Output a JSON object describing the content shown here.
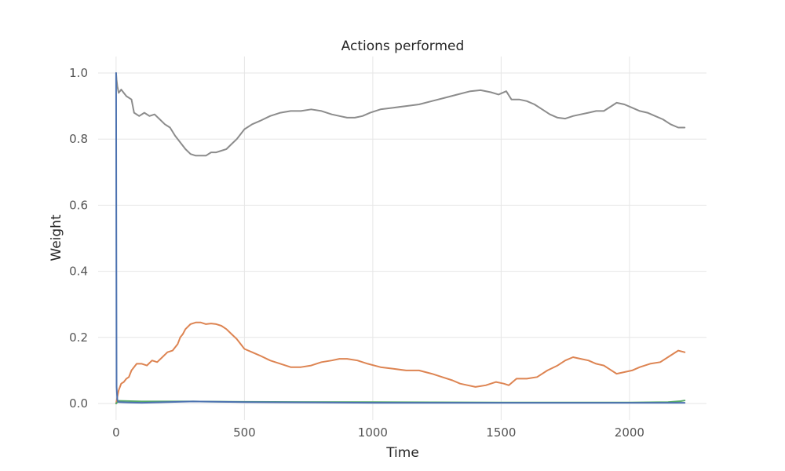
{
  "chart_data": {
    "type": "line",
    "title": "Actions performed",
    "xlabel": "Time",
    "ylabel": "Weight",
    "xlim": [
      -70,
      2300
    ],
    "ylim": [
      -0.05,
      1.05
    ],
    "xticks": [
      0,
      500,
      1000,
      1500,
      2000
    ],
    "yticks": [
      0.0,
      0.2,
      0.4,
      0.6,
      0.8,
      1.0
    ],
    "xtick_labels": [
      "0",
      "500",
      "1000",
      "1500",
      "2000"
    ],
    "ytick_labels": [
      "0.0",
      "0.2",
      "0.4",
      "0.6",
      "0.8",
      "1.0"
    ],
    "grid": true,
    "legend": "none",
    "series": [
      {
        "color": "#8c8c8c",
        "x": [
          0,
          2,
          5,
          10,
          20,
          40,
          60,
          70,
          90,
          110,
          130,
          150,
          170,
          190,
          210,
          230,
          250,
          270,
          290,
          310,
          330,
          350,
          370,
          390,
          410,
          430,
          450,
          470,
          500,
          530,
          560,
          600,
          640,
          680,
          720,
          760,
          800,
          840,
          870,
          900,
          930,
          960,
          990,
          1030,
          1080,
          1130,
          1180,
          1230,
          1280,
          1330,
          1380,
          1420,
          1460,
          1490,
          1520,
          1540,
          1570,
          1600,
          1630,
          1660,
          1690,
          1720,
          1750,
          1780,
          1810,
          1840,
          1870,
          1900,
          1930,
          1950,
          1980,
          2010,
          2040,
          2070,
          2100,
          2130,
          2160,
          2190,
          2215
        ],
        "values": [
          1.0,
          0.98,
          0.96,
          0.94,
          0.95,
          0.93,
          0.92,
          0.88,
          0.87,
          0.88,
          0.87,
          0.875,
          0.86,
          0.845,
          0.835,
          0.81,
          0.79,
          0.77,
          0.755,
          0.75,
          0.75,
          0.75,
          0.76,
          0.76,
          0.765,
          0.77,
          0.785,
          0.8,
          0.83,
          0.845,
          0.855,
          0.87,
          0.88,
          0.885,
          0.885,
          0.89,
          0.885,
          0.875,
          0.87,
          0.865,
          0.865,
          0.87,
          0.88,
          0.89,
          0.895,
          0.9,
          0.905,
          0.915,
          0.925,
          0.935,
          0.945,
          0.948,
          0.942,
          0.935,
          0.945,
          0.92,
          0.92,
          0.915,
          0.905,
          0.89,
          0.875,
          0.865,
          0.862,
          0.87,
          0.875,
          0.88,
          0.885,
          0.885,
          0.9,
          0.91,
          0.905,
          0.895,
          0.885,
          0.88,
          0.87,
          0.86,
          0.845,
          0.835,
          0.835
        ]
      },
      {
        "color": "#dd8452",
        "x": [
          0,
          5,
          10,
          15,
          20,
          30,
          40,
          50,
          60,
          80,
          100,
          120,
          140,
          160,
          180,
          200,
          220,
          240,
          250,
          260,
          270,
          290,
          310,
          330,
          350,
          370,
          390,
          410,
          430,
          450,
          470,
          500,
          530,
          560,
          600,
          640,
          680,
          720,
          760,
          800,
          840,
          870,
          900,
          940,
          980,
          1030,
          1080,
          1130,
          1180,
          1230,
          1270,
          1310,
          1340,
          1370,
          1400,
          1440,
          1480,
          1510,
          1530,
          1560,
          1600,
          1640,
          1680,
          1720,
          1750,
          1780,
          1810,
          1840,
          1870,
          1900,
          1920,
          1950,
          1980,
          2010,
          2040,
          2080,
          2120,
          2160,
          2190,
          2215
        ],
        "values": [
          0.0,
          0.02,
          0.04,
          0.05,
          0.06,
          0.065,
          0.075,
          0.08,
          0.1,
          0.12,
          0.12,
          0.115,
          0.13,
          0.125,
          0.14,
          0.155,
          0.16,
          0.18,
          0.2,
          0.21,
          0.225,
          0.24,
          0.245,
          0.245,
          0.24,
          0.242,
          0.24,
          0.235,
          0.225,
          0.21,
          0.195,
          0.165,
          0.155,
          0.145,
          0.13,
          0.12,
          0.11,
          0.11,
          0.115,
          0.125,
          0.13,
          0.135,
          0.135,
          0.13,
          0.12,
          0.11,
          0.105,
          0.1,
          0.1,
          0.09,
          0.08,
          0.07,
          0.06,
          0.055,
          0.05,
          0.055,
          0.065,
          0.06,
          0.055,
          0.075,
          0.075,
          0.08,
          0.1,
          0.115,
          0.13,
          0.14,
          0.135,
          0.13,
          0.12,
          0.115,
          0.105,
          0.09,
          0.095,
          0.1,
          0.11,
          0.12,
          0.125,
          0.145,
          0.16,
          0.155
        ]
      },
      {
        "color": "#55a868",
        "x": [
          0,
          10,
          100,
          300,
          500,
          1000,
          1500,
          2000,
          2150,
          2200,
          2215
        ],
        "values": [
          0.0,
          0.008,
          0.006,
          0.006,
          0.005,
          0.004,
          0.003,
          0.003,
          0.004,
          0.007,
          0.009
        ]
      },
      {
        "color": "#4c72b0",
        "x": [
          0,
          1,
          2,
          5,
          10,
          50,
          100,
          200,
          300,
          500,
          800,
          1000,
          1500,
          2000,
          2215
        ],
        "values": [
          1.0,
          0.5,
          0.05,
          0.01,
          0.004,
          0.003,
          0.002,
          0.004,
          0.006,
          0.004,
          0.003,
          0.002,
          0.002,
          0.002,
          0.002
        ]
      }
    ]
  }
}
